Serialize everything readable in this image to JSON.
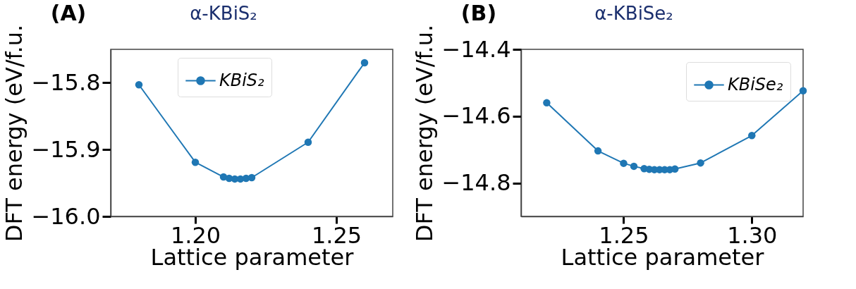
{
  "chart_data": [
    {
      "type": "line",
      "title": "α-KBiS₂",
      "xlabel": "Lattice parameter",
      "ylabel": "DFT energy (eV/f.u.",
      "annotations": [
        "(A)"
      ],
      "x": [
        1.18,
        1.2,
        1.21,
        1.212,
        1.214,
        1.216,
        1.218,
        1.22,
        1.24,
        1.26
      ],
      "series": [
        {
          "name": "KBiS₂",
          "color": "#1f77b4",
          "values": [
            -15.803,
            -15.919,
            -15.941,
            -15.943,
            -15.944,
            -15.944,
            -15.943,
            -15.942,
            -15.889,
            -15.77
          ]
        }
      ],
      "xlim": [
        1.17,
        1.27
      ],
      "ylim": [
        -16.0,
        -15.75
      ],
      "xticks": [
        {
          "value": 1.2,
          "label": "1.20"
        },
        {
          "value": 1.25,
          "label": "1.25"
        }
      ],
      "yticks": [
        {
          "value": -16.0,
          "label": "−16.0"
        },
        {
          "value": -15.9,
          "label": "−15.9"
        },
        {
          "value": -15.8,
          "label": "−15.8"
        }
      ],
      "grid": false,
      "legend": "top",
      "marker": "circle"
    },
    {
      "type": "line",
      "title": "α-KBiSe₂",
      "xlabel": "Lattice parameter",
      "ylabel": "DFT energy (eV/f.u.",
      "annotations": [
        "(B)"
      ],
      "x": [
        1.22,
        1.24,
        1.25,
        1.254,
        1.258,
        1.26,
        1.262,
        1.264,
        1.266,
        1.268,
        1.27,
        1.28,
        1.3,
        1.32
      ],
      "series": [
        {
          "name": "KBiSe₂",
          "color": "#1f77b4",
          "values": [
            -14.56,
            -14.704,
            -14.741,
            -14.75,
            -14.757,
            -14.759,
            -14.76,
            -14.76,
            -14.76,
            -14.76,
            -14.758,
            -14.74,
            -14.658,
            -14.524
          ]
        }
      ],
      "xlim": [
        1.21,
        1.32
      ],
      "ylim": [
        -14.9,
        -14.4
      ],
      "xticks": [
        {
          "value": 1.25,
          "label": "1.25"
        },
        {
          "value": 1.3,
          "label": "1.30"
        }
      ],
      "yticks": [
        {
          "value": -14.8,
          "label": "−14.8"
        },
        {
          "value": -14.6,
          "label": "−14.6"
        },
        {
          "value": -14.4,
          "label": "−14.4"
        }
      ],
      "grid": false,
      "legend": "top right",
      "marker": "circle"
    }
  ]
}
